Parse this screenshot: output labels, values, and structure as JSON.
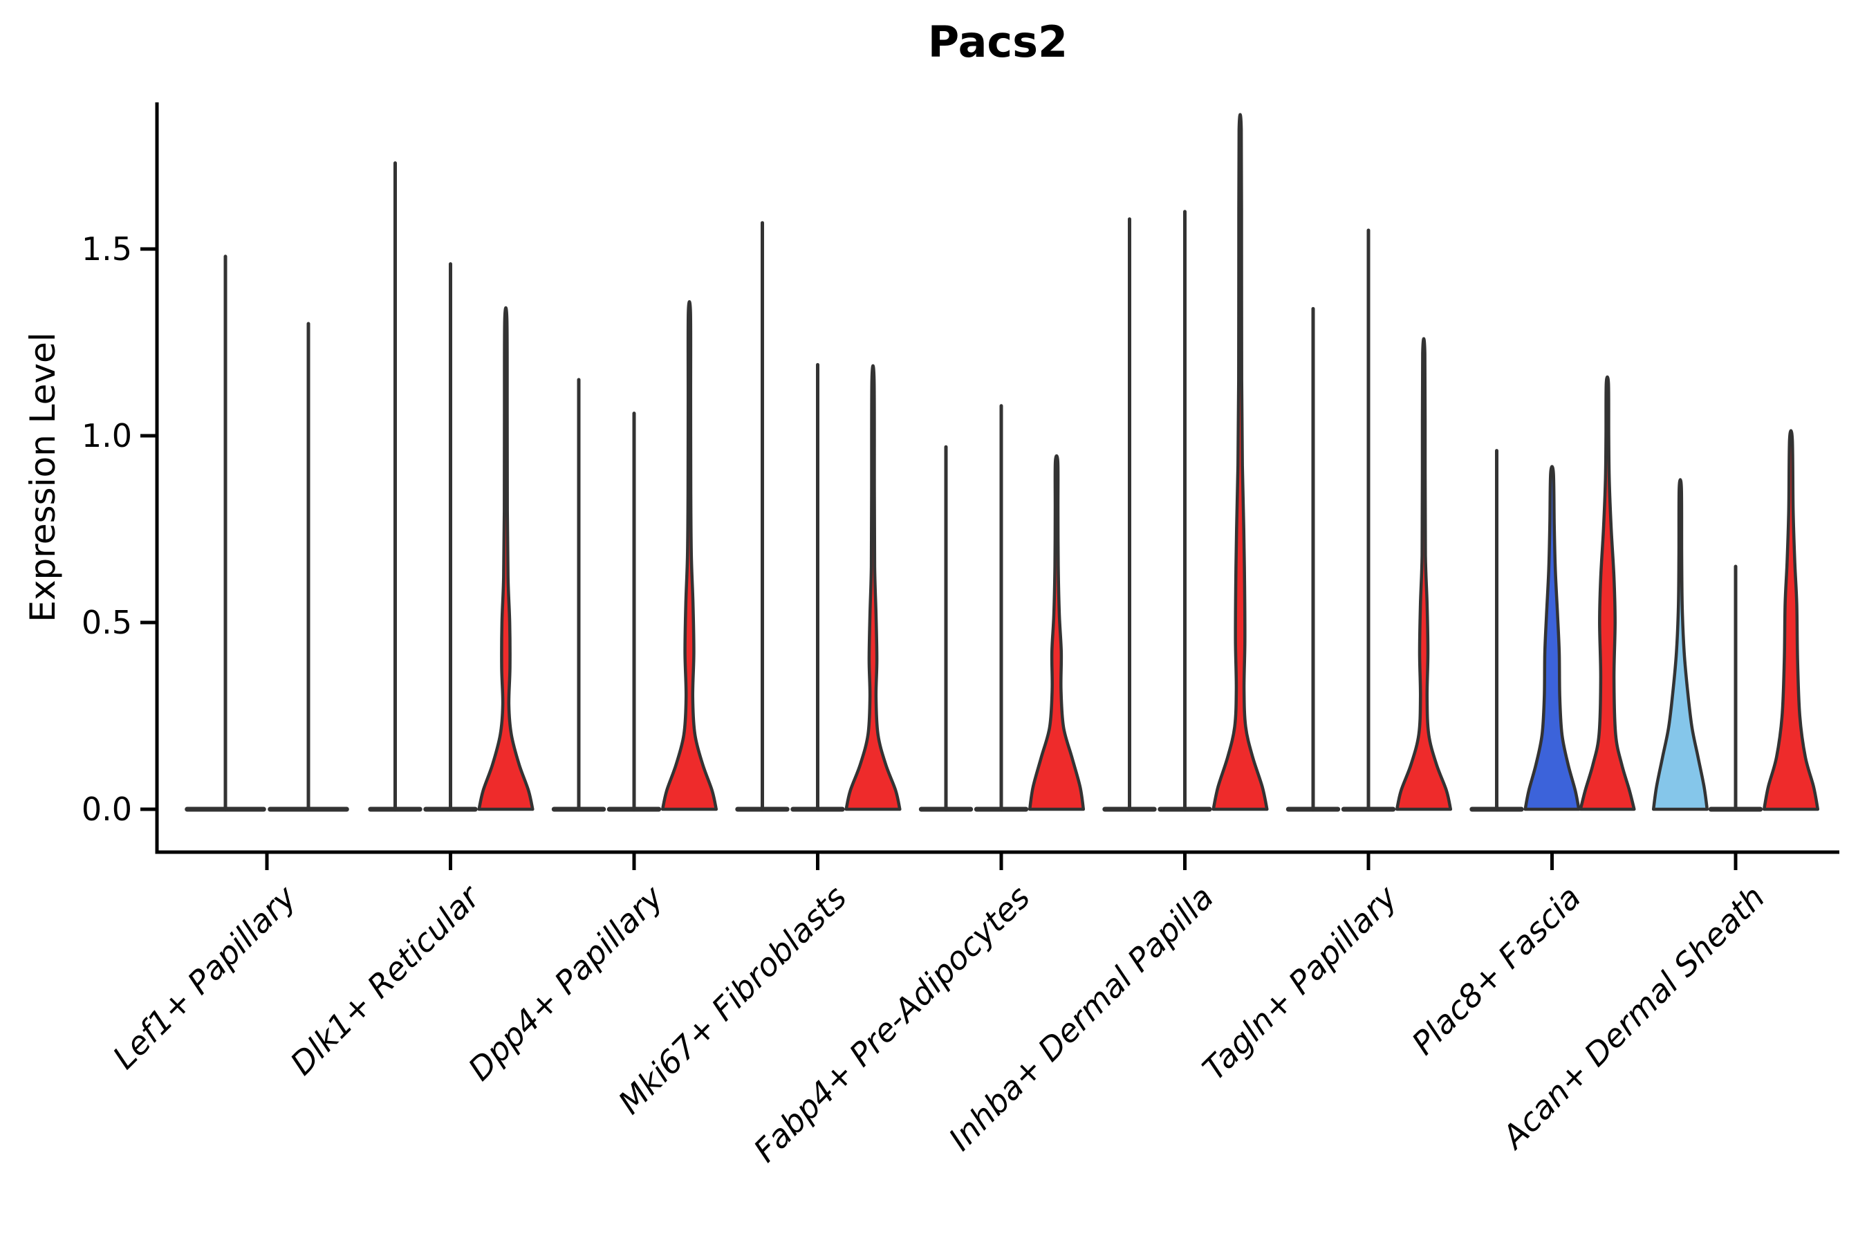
{
  "title": "Pacs2",
  "colors": {
    "red": "#ee2b2b",
    "blue": "#3c63da",
    "lightblue": "#85c6ea",
    "edge": "#333333",
    "axis": "#000000",
    "background": "#ffffff"
  },
  "chart_data": {
    "type": "violin",
    "title": "Pacs2",
    "xlabel": "",
    "ylabel": "Expression Level",
    "yticks": [
      "0.0",
      "0.5",
      "1.0",
      "1.5"
    ],
    "ytick_values": [
      0.0,
      0.5,
      1.0,
      1.5
    ],
    "ylim": [
      -0.12,
      1.89
    ],
    "grid": false,
    "legend": "none",
    "categories": [
      "Lef1+ Papillary",
      "Dlk1+ Reticular",
      "Dpp4+ Papillary",
      "Mki67+ Fibroblasts",
      "Fabp4+ Pre-Adipocytes",
      "Inhba+ Dermal Papilla",
      "Tagln+ Papillary",
      "Plac8+ Fascia",
      "Acan+ Dermal Sheath"
    ],
    "groups": [
      {
        "category": "Lef1+ Papillary",
        "violins": [
          {
            "max": 1.48,
            "style": "spike",
            "color": "edge"
          },
          {
            "max": 1.3,
            "style": "spike",
            "color": "edge"
          }
        ]
      },
      {
        "category": "Dlk1+ Reticular",
        "violins": [
          {
            "max": 1.73,
            "style": "spike",
            "color": "edge"
          },
          {
            "max": 1.46,
            "style": "spike",
            "color": "edge"
          },
          {
            "max": 1.31,
            "style": "filled",
            "color": "red",
            "profile": [
              [
                0,
                0.97
              ],
              [
                0.05,
                0.82
              ],
              [
                0.12,
                0.48
              ],
              [
                0.2,
                0.2
              ],
              [
                0.28,
                0.11
              ],
              [
                0.38,
                0.15
              ],
              [
                0.5,
                0.14
              ],
              [
                0.62,
                0.08
              ],
              [
                0.8,
                0.055
              ],
              [
                1.05,
                0.05
              ],
              [
                1.31,
                0.04
              ]
            ]
          }
        ]
      },
      {
        "category": "Dpp4+ Papillary",
        "violins": [
          {
            "max": 1.15,
            "style": "spike",
            "color": "edge"
          },
          {
            "max": 1.06,
            "style": "spike",
            "color": "edge"
          },
          {
            "max": 1.33,
            "style": "filled",
            "color": "red",
            "profile": [
              [
                0,
                0.97
              ],
              [
                0.05,
                0.82
              ],
              [
                0.12,
                0.48
              ],
              [
                0.2,
                0.2
              ],
              [
                0.3,
                0.12
              ],
              [
                0.42,
                0.16
              ],
              [
                0.55,
                0.13
              ],
              [
                0.68,
                0.07
              ],
              [
                0.85,
                0.05
              ],
              [
                1.1,
                0.045
              ],
              [
                1.33,
                0.04
              ]
            ]
          }
        ]
      },
      {
        "category": "Mki67+ Fibroblasts",
        "violins": [
          {
            "max": 1.57,
            "style": "spike",
            "color": "edge"
          },
          {
            "max": 1.19,
            "style": "spike",
            "color": "edge"
          },
          {
            "max": 1.15,
            "style": "filled",
            "color": "red",
            "profile": [
              [
                0,
                0.97
              ],
              [
                0.05,
                0.82
              ],
              [
                0.12,
                0.46
              ],
              [
                0.2,
                0.18
              ],
              [
                0.3,
                0.11
              ],
              [
                0.4,
                0.14
              ],
              [
                0.52,
                0.11
              ],
              [
                0.65,
                0.06
              ],
              [
                0.85,
                0.05
              ],
              [
                1.15,
                0.04
              ]
            ]
          }
        ]
      },
      {
        "category": "Fabp4+ Pre-Adipocytes",
        "violins": [
          {
            "max": 0.97,
            "style": "spike",
            "color": "edge"
          },
          {
            "max": 1.08,
            "style": "spike",
            "color": "edge"
          },
          {
            "max": 0.93,
            "style": "filled",
            "color": "red",
            "profile": [
              [
                0,
                0.97
              ],
              [
                0.06,
                0.85
              ],
              [
                0.14,
                0.55
              ],
              [
                0.22,
                0.25
              ],
              [
                0.32,
                0.16
              ],
              [
                0.42,
                0.17
              ],
              [
                0.52,
                0.1
              ],
              [
                0.65,
                0.06
              ],
              [
                0.8,
                0.05
              ],
              [
                0.93,
                0.045
              ]
            ]
          }
        ]
      },
      {
        "category": "Inhba+ Dermal Papilla",
        "violins": [
          {
            "max": 1.58,
            "style": "spike",
            "color": "edge"
          },
          {
            "max": 1.6,
            "style": "spike",
            "color": "edge"
          },
          {
            "max": 1.82,
            "style": "filled",
            "color": "red",
            "profile": [
              [
                0,
                0.97
              ],
              [
                0.06,
                0.8
              ],
              [
                0.14,
                0.45
              ],
              [
                0.22,
                0.2
              ],
              [
                0.32,
                0.14
              ],
              [
                0.45,
                0.17
              ],
              [
                0.6,
                0.16
              ],
              [
                0.75,
                0.13
              ],
              [
                0.92,
                0.08
              ],
              [
                1.15,
                0.055
              ],
              [
                1.5,
                0.05
              ],
              [
                1.82,
                0.04
              ]
            ]
          }
        ]
      },
      {
        "category": "Tagln+ Papillary",
        "violins": [
          {
            "max": 1.34,
            "style": "spike",
            "color": "edge"
          },
          {
            "max": 1.55,
            "style": "spike",
            "color": "edge"
          },
          {
            "max": 1.22,
            "style": "filled",
            "color": "red",
            "profile": [
              [
                0,
                0.97
              ],
              [
                0.05,
                0.82
              ],
              [
                0.12,
                0.46
              ],
              [
                0.2,
                0.18
              ],
              [
                0.3,
                0.12
              ],
              [
                0.42,
                0.15
              ],
              [
                0.55,
                0.12
              ],
              [
                0.68,
                0.06
              ],
              [
                0.9,
                0.05
              ],
              [
                1.22,
                0.04
              ]
            ]
          }
        ]
      },
      {
        "category": "Plac8+ Fascia",
        "violins": [
          {
            "max": 0.96,
            "style": "spike",
            "color": "edge"
          },
          {
            "max": 0.9,
            "style": "filled",
            "color": "blue",
            "profile": [
              [
                0,
                0.97
              ],
              [
                0.05,
                0.84
              ],
              [
                0.12,
                0.58
              ],
              [
                0.2,
                0.36
              ],
              [
                0.3,
                0.28
              ],
              [
                0.42,
                0.26
              ],
              [
                0.52,
                0.2
              ],
              [
                0.64,
                0.12
              ],
              [
                0.76,
                0.08
              ],
              [
                0.9,
                0.05
              ]
            ]
          },
          {
            "max": 1.14,
            "style": "filled",
            "color": "red",
            "profile": [
              [
                0,
                0.97
              ],
              [
                0.05,
                0.8
              ],
              [
                0.12,
                0.52
              ],
              [
                0.2,
                0.3
              ],
              [
                0.35,
                0.24
              ],
              [
                0.5,
                0.28
              ],
              [
                0.62,
                0.24
              ],
              [
                0.75,
                0.14
              ],
              [
                0.88,
                0.07
              ],
              [
                1.0,
                0.05
              ],
              [
                1.14,
                0.04
              ]
            ]
          }
        ]
      },
      {
        "category": "Acan+ Dermal Sheath",
        "violins": [
          {
            "max": 0.86,
            "style": "filled",
            "color": "lightblue",
            "profile": [
              [
                0,
                0.97
              ],
              [
                0.06,
                0.86
              ],
              [
                0.14,
                0.64
              ],
              [
                0.22,
                0.42
              ],
              [
                0.32,
                0.26
              ],
              [
                0.42,
                0.14
              ],
              [
                0.54,
                0.07
              ],
              [
                0.68,
                0.05
              ],
              [
                0.86,
                0.04
              ]
            ]
          },
          {
            "max": 0.65,
            "style": "spike",
            "color": "edge"
          },
          {
            "max": 0.99,
            "style": "filled",
            "color": "red",
            "profile": [
              [
                0,
                0.97
              ],
              [
                0.06,
                0.82
              ],
              [
                0.14,
                0.52
              ],
              [
                0.25,
                0.32
              ],
              [
                0.4,
                0.24
              ],
              [
                0.55,
                0.21
              ],
              [
                0.66,
                0.14
              ],
              [
                0.8,
                0.08
              ],
              [
                0.99,
                0.05
              ]
            ]
          }
        ]
      }
    ]
  }
}
